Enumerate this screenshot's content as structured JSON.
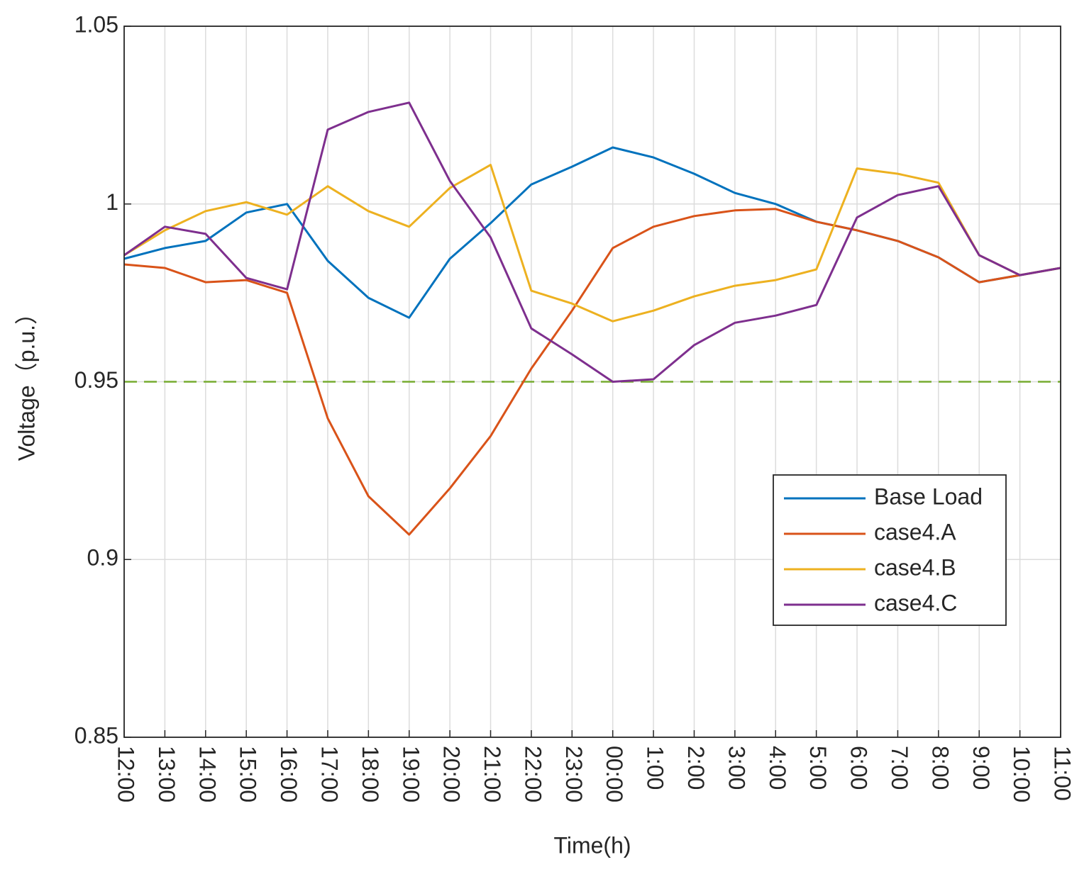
{
  "chart_data": {
    "type": "line",
    "x_label": "Time(h)",
    "y_label": "Voltage（p.u.）",
    "categories": [
      "12:00",
      "13:00",
      "14:00",
      "15:00",
      "16:00",
      "17:00",
      "18:00",
      "19:00",
      "20:00",
      "21:00",
      "22:00",
      "23:00",
      "00:00",
      "1:00",
      "2:00",
      "3:00",
      "4:00",
      "5:00",
      "6:00",
      "7:00",
      "8:00",
      "9:00",
      "10:00",
      "11:00"
    ],
    "series": [
      {
        "name": "Base Load",
        "color": "#0072bd",
        "values": [
          0.9846,
          0.9876,
          0.9896,
          0.9976,
          1.0,
          0.984,
          0.9736,
          0.968,
          0.9846,
          0.9946,
          1.0055,
          1.0105,
          1.0159,
          1.0131,
          1.0085,
          1.0031,
          1.0,
          0.995,
          0.9926,
          0.9896,
          0.985,
          0.978,
          0.98,
          0.982
        ]
      },
      {
        "name": "case4.A",
        "color": "#d95319",
        "values": [
          0.983,
          0.982,
          0.978,
          0.9786,
          0.975,
          0.9397,
          0.9178,
          0.907,
          0.92,
          0.9347,
          0.9537,
          0.97,
          0.9876,
          0.9936,
          0.9966,
          0.9982,
          0.9986,
          0.995,
          0.9926,
          0.9896,
          0.985,
          0.978,
          0.98,
          0.982
        ]
      },
      {
        "name": "case4.B",
        "color": "#edb120",
        "values": [
          0.9856,
          0.9926,
          0.998,
          1.0005,
          0.997,
          1.005,
          0.998,
          0.9936,
          1.0045,
          1.011,
          0.9756,
          0.972,
          0.967,
          0.97,
          0.974,
          0.977,
          0.9786,
          0.9816,
          1.01,
          1.0085,
          1.006,
          0.9856,
          0.98,
          0.982
        ]
      },
      {
        "name": "case4.C",
        "color": "#7e2f8e",
        "values": [
          0.9856,
          0.9936,
          0.9916,
          0.9792,
          0.976,
          1.0209,
          1.0259,
          1.0285,
          1.0065,
          0.9906,
          0.965,
          0.9577,
          0.95,
          0.9507,
          0.9603,
          0.9666,
          0.9686,
          0.9716,
          0.9962,
          1.0025,
          1.005,
          0.9856,
          0.98,
          0.982
        ]
      }
    ],
    "reference_line": {
      "value": 0.95,
      "color": "#77ac30",
      "dashed": true
    },
    "ylim": [
      0.85,
      1.05
    ],
    "yticks": [
      0.85,
      0.9,
      0.95,
      1,
      1.05
    ],
    "grid": true,
    "legend": "right"
  }
}
